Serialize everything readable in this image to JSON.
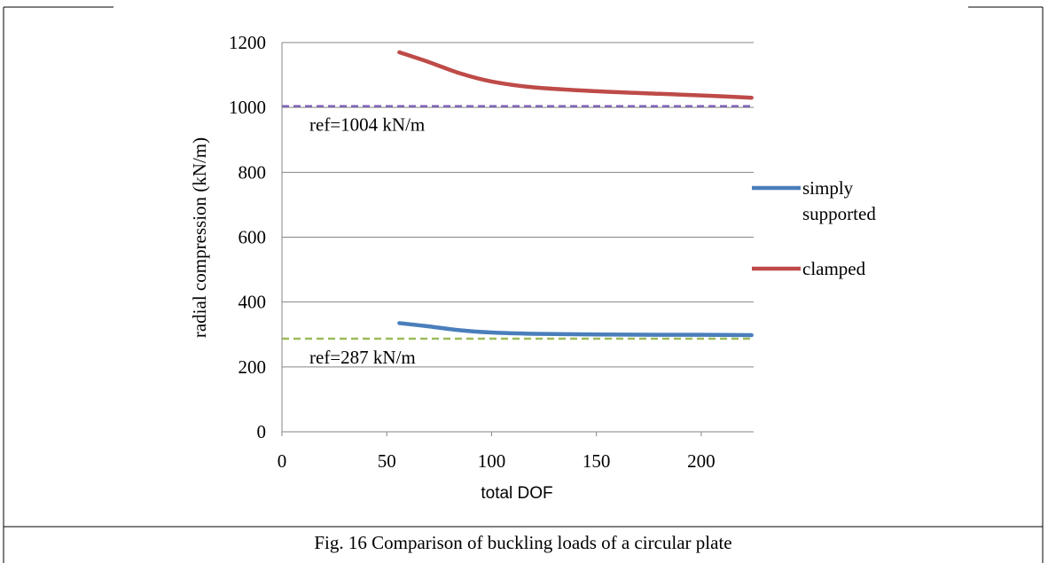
{
  "figure": {
    "caption": "Fig. 16 Comparison of buckling loads of a circular plate"
  },
  "chart_data": {
    "type": "line",
    "xlabel": "total DOF",
    "ylabel": "radial compression (kN/m)",
    "xlim": [
      0,
      225
    ],
    "ylim": [
      0,
      1200
    ],
    "x_ticks": [
      0,
      50,
      100,
      150,
      200
    ],
    "y_ticks": [
      0,
      200,
      400,
      600,
      800,
      1000,
      1200
    ],
    "grid": "horizontal",
    "legend_position": "right",
    "series": [
      {
        "name": "simply supported",
        "color": "#4a7ebb",
        "x": [
          56,
          70,
          85,
          100,
          120,
          150,
          180,
          200,
          224
        ],
        "y": [
          335,
          325,
          313,
          306,
          302,
          300,
          299,
          299,
          298
        ]
      },
      {
        "name": "clamped",
        "color": "#be4b48",
        "x": [
          56,
          70,
          85,
          100,
          120,
          150,
          180,
          200,
          224
        ],
        "y": [
          1170,
          1140,
          1105,
          1080,
          1062,
          1050,
          1042,
          1037,
          1030
        ]
      }
    ],
    "reference_lines": [
      {
        "label": "ref=1004 kN/m",
        "value": 1004,
        "color": "#7f63b8"
      },
      {
        "label": "ref=287 kN/m",
        "value": 287,
        "color": "#9bbb59"
      }
    ]
  }
}
